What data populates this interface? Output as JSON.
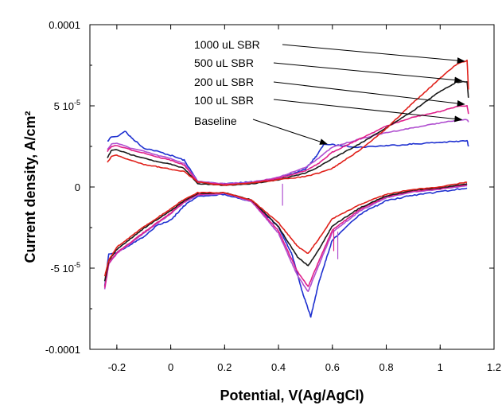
{
  "chart_data": {
    "type": "line",
    "title": "",
    "xlabel": "Potential, V(Ag/AgCl)",
    "ylabel": "Current density, A/cm²",
    "xlim": [
      -0.3,
      1.2
    ],
    "ylim": [
      -0.0001,
      0.0001
    ],
    "x_ticks": [
      -0.2,
      0,
      0.2,
      0.4,
      0.6,
      0.8,
      1,
      1.2
    ],
    "x_tick_labels": [
      "-0.2",
      "0",
      "0.2",
      "0.4",
      "0.6",
      "0.8",
      "1",
      "1.2"
    ],
    "y_ticks": [
      {
        "value": -0.0001,
        "label": "-0.0001"
      },
      {
        "value": -5e-05,
        "mant": "-5 10",
        "exp": "-5"
      },
      {
        "value": 0,
        "label": "0"
      },
      {
        "value": 5e-05,
        "mant": "5 10",
        "exp": "-5"
      },
      {
        "value": 0.0001,
        "label": "0.0001"
      }
    ],
    "grid": false,
    "legend_placement": "top-right (annotated with arrows)",
    "series": [
      {
        "name": "1000 uL SBR",
        "color": "#e0201a",
        "arrow_target": [
          1.09,
          7.75e-05
        ],
        "anodic": [
          [
            -0.235,
            1.5e-05
          ],
          [
            -0.22,
            1.9e-05
          ],
          [
            -0.2,
            1.95e-05
          ],
          [
            -0.15,
            1.65e-05
          ],
          [
            -0.1,
            1.4e-05
          ],
          [
            -0.05,
            1.25e-05
          ],
          [
            0,
            1.1e-05
          ],
          [
            0.05,
            9.5e-06
          ],
          [
            0.1,
            3e-06
          ],
          [
            0.2,
            1e-06
          ],
          [
            0.3,
            2.5e-06
          ],
          [
            0.4,
            4.5e-06
          ],
          [
            0.5,
            6.5e-06
          ],
          [
            0.55,
            8.5e-06
          ],
          [
            0.6,
            1.15e-05
          ],
          [
            0.7,
            2.25e-05
          ],
          [
            0.8,
            3.6e-05
          ],
          [
            0.9,
            5.2e-05
          ],
          [
            1,
            6.7e-05
          ],
          [
            1.06,
            7.55e-05
          ],
          [
            1.1,
            7.8e-05
          ],
          [
            1.105,
            6e-05
          ]
        ],
        "cathodic": [
          [
            1.1,
            3e-06
          ],
          [
            1.0,
            0
          ],
          [
            0.9,
            -1.5e-06
          ],
          [
            0.8,
            -4.5e-06
          ],
          [
            0.7,
            -1.1e-05
          ],
          [
            0.6,
            -1.95e-05
          ],
          [
            0.55,
            -3.2e-05
          ],
          [
            0.51,
            -4.1e-05
          ],
          [
            0.47,
            -3.65e-05
          ],
          [
            0.4,
            -2.2e-05
          ],
          [
            0.3,
            -8e-06
          ],
          [
            0.2,
            -3.5e-06
          ],
          [
            0.1,
            -3.5e-06
          ],
          [
            0.05,
            -7.5e-06
          ],
          [
            0,
            -1.35e-05
          ],
          [
            -0.1,
            -2.45e-05
          ],
          [
            -0.2,
            -3.7e-05
          ],
          [
            -0.23,
            -4.5e-05
          ],
          [
            -0.245,
            -5.5e-05
          ]
        ]
      },
      {
        "name": "500 uL SBR",
        "color": "#1a1a1a",
        "arrow_target": [
          1.08,
          6.55e-05
        ],
        "anodic": [
          [
            -0.235,
            1.8e-05
          ],
          [
            -0.22,
            2.25e-05
          ],
          [
            -0.2,
            2.3e-05
          ],
          [
            -0.15,
            2e-05
          ],
          [
            -0.1,
            1.8e-05
          ],
          [
            -0.05,
            1.55e-05
          ],
          [
            0,
            1.4e-05
          ],
          [
            0.05,
            1.15e-05
          ],
          [
            0.1,
            2e-06
          ],
          [
            0.2,
            1e-06
          ],
          [
            0.3,
            2e-06
          ],
          [
            0.4,
            4.5e-06
          ],
          [
            0.5,
            8.5e-06
          ],
          [
            0.55,
            1.25e-05
          ],
          [
            0.6,
            1.75e-05
          ],
          [
            0.7,
            2.65e-05
          ],
          [
            0.8,
            3.65e-05
          ],
          [
            0.9,
            4.7e-05
          ],
          [
            1,
            5.9e-05
          ],
          [
            1.06,
            6.45e-05
          ],
          [
            1.1,
            6.5e-05
          ],
          [
            1.105,
            5.5e-05
          ]
        ],
        "cathodic": [
          [
            1.1,
            2e-06
          ],
          [
            1.0,
            -5e-07
          ],
          [
            0.9,
            -2e-06
          ],
          [
            0.8,
            -5.5e-06
          ],
          [
            0.7,
            -1.3e-05
          ],
          [
            0.6,
            -2.4e-05
          ],
          [
            0.55,
            -3.85e-05
          ],
          [
            0.51,
            -4.85e-05
          ],
          [
            0.47,
            -4.3e-05
          ],
          [
            0.4,
            -2.45e-05
          ],
          [
            0.3,
            -8e-06
          ],
          [
            0.2,
            -3.5e-06
          ],
          [
            0.1,
            -4e-06
          ],
          [
            0.05,
            -8.5e-06
          ],
          [
            0,
            -1.45e-05
          ],
          [
            -0.1,
            -2.55e-05
          ],
          [
            -0.2,
            -3.85e-05
          ],
          [
            -0.23,
            -4.55e-05
          ],
          [
            -0.245,
            -5.8e-05
          ]
        ]
      },
      {
        "name": "200 uL SBR",
        "color": "#e0208a",
        "arrow_target": [
          1.09,
          5.1e-05
        ],
        "anodic": [
          [
            -0.235,
            2.2e-05
          ],
          [
            -0.22,
            2.5e-05
          ],
          [
            -0.2,
            2.55e-05
          ],
          [
            -0.15,
            2.3e-05
          ],
          [
            -0.1,
            2.1e-05
          ],
          [
            -0.05,
            1.85e-05
          ],
          [
            0,
            1.65e-05
          ],
          [
            0.05,
            1.35e-05
          ],
          [
            0.1,
            3e-06
          ],
          [
            0.2,
            1.5e-06
          ],
          [
            0.3,
            2.5e-06
          ],
          [
            0.4,
            5.5e-06
          ],
          [
            0.5,
            1e-05
          ],
          [
            0.55,
            1.45e-05
          ],
          [
            0.6,
            2.15e-05
          ],
          [
            0.7,
            2.95e-05
          ],
          [
            0.8,
            3.75e-05
          ],
          [
            0.9,
            4.3e-05
          ],
          [
            1,
            4.65e-05
          ],
          [
            1.06,
            4.95e-05
          ],
          [
            1.1,
            5e-05
          ],
          [
            1.105,
            4.5e-05
          ]
        ],
        "cathodic": [
          [
            1.1,
            1.5e-06
          ],
          [
            1.0,
            -1e-06
          ],
          [
            0.9,
            -2.5e-06
          ],
          [
            0.8,
            -6e-06
          ],
          [
            0.7,
            -1.4e-05
          ],
          [
            0.6,
            -2.65e-05
          ],
          [
            0.55,
            -4.55e-05
          ],
          [
            0.51,
            -6.15e-05
          ],
          [
            0.47,
            -5.2e-05
          ],
          [
            0.4,
            -2.7e-05
          ],
          [
            0.3,
            -8.5e-06
          ],
          [
            0.2,
            -3.5e-06
          ],
          [
            0.1,
            -4.5e-06
          ],
          [
            0.05,
            -9e-06
          ],
          [
            0,
            -1.6e-05
          ],
          [
            -0.1,
            -2.8e-05
          ],
          [
            -0.2,
            -4.05e-05
          ],
          [
            -0.23,
            -4.7e-05
          ],
          [
            -0.245,
            -6.2e-05
          ]
        ]
      },
      {
        "name": "100 uL SBR",
        "color": "#b050d0",
        "arrow_target": [
          1.08,
          4.15e-05
        ],
        "anodic": [
          [
            -0.235,
            2.3e-05
          ],
          [
            -0.22,
            2.65e-05
          ],
          [
            -0.2,
            2.7e-05
          ],
          [
            -0.15,
            2.4e-05
          ],
          [
            -0.1,
            2.2e-05
          ],
          [
            -0.05,
            1.95e-05
          ],
          [
            0,
            1.75e-05
          ],
          [
            0.05,
            1.45e-05
          ],
          [
            0.1,
            3.5e-06
          ],
          [
            0.2,
            2e-06
          ],
          [
            0.3,
            3e-06
          ],
          [
            0.4,
            6e-06
          ],
          [
            0.5,
            1.2e-05
          ],
          [
            0.55,
            1.8e-05
          ],
          [
            0.6,
            2.45e-05
          ],
          [
            0.7,
            2.95e-05
          ],
          [
            0.8,
            3.35e-05
          ],
          [
            0.9,
            3.65e-05
          ],
          [
            1,
            3.95e-05
          ],
          [
            1.06,
            4.1e-05
          ],
          [
            1.1,
            4.15e-05
          ],
          [
            1.105,
            4e-05
          ]
        ],
        "cathodic": [
          [
            1.1,
            1e-06
          ],
          [
            1.0,
            -1.5e-06
          ],
          [
            0.9,
            -3e-06
          ],
          [
            0.8,
            -6.5e-06
          ],
          [
            0.7,
            -1.5e-05
          ],
          [
            0.6,
            -2.8e-05
          ],
          [
            0.55,
            -4.8e-05
          ],
          [
            0.51,
            -6.45e-05
          ],
          [
            0.47,
            -5.45e-05
          ],
          [
            0.4,
            -2.85e-05
          ],
          [
            0.3,
            -9e-06
          ],
          [
            0.2,
            -4e-06
          ],
          [
            0.1,
            -5e-06
          ],
          [
            0.05,
            -9.5e-06
          ],
          [
            0,
            -1.65e-05
          ],
          [
            -0.1,
            -2.85e-05
          ],
          [
            -0.2,
            -4.1e-05
          ],
          [
            -0.23,
            -4.75e-05
          ],
          [
            -0.245,
            -6.3e-05
          ]
        ]
      },
      {
        "name": "Baseline",
        "color": "#1e30d0",
        "arrow_target": [
          0.58,
          2.65e-05
        ],
        "anodic": [
          [
            -0.235,
            2.8e-05
          ],
          [
            -0.22,
            3.1e-05
          ],
          [
            -0.2,
            3.1e-05
          ],
          [
            -0.17,
            3.45e-05
          ],
          [
            -0.15,
            3.1e-05
          ],
          [
            -0.1,
            2.4e-05
          ],
          [
            -0.05,
            2.2e-05
          ],
          [
            0,
            1.95e-05
          ],
          [
            0.05,
            1.65e-05
          ],
          [
            0.1,
            3.5e-06
          ],
          [
            0.2,
            2e-06
          ],
          [
            0.3,
            3e-06
          ],
          [
            0.4,
            5e-06
          ],
          [
            0.5,
            1.1e-05
          ],
          [
            0.54,
            1.9e-05
          ],
          [
            0.57,
            2.65e-05
          ],
          [
            0.6,
            2.6e-05
          ],
          [
            0.7,
            2.45e-05
          ],
          [
            0.8,
            2.55e-05
          ],
          [
            0.9,
            2.65e-05
          ],
          [
            1,
            2.75e-05
          ],
          [
            1.06,
            2.8e-05
          ],
          [
            1.1,
            2.85e-05
          ],
          [
            1.105,
            2.5e-05
          ]
        ],
        "cathodic": [
          [
            1.1,
            -5e-07
          ],
          [
            1.0,
            -3e-06
          ],
          [
            0.9,
            -5e-06
          ],
          [
            0.8,
            -8.5e-06
          ],
          [
            0.7,
            -1.7e-05
          ],
          [
            0.6,
            -3.25e-05
          ],
          [
            0.55,
            -5.85e-05
          ],
          [
            0.52,
            -8e-05
          ],
          [
            0.49,
            -6.55e-05
          ],
          [
            0.45,
            -4.15e-05
          ],
          [
            0.4,
            -2.45e-05
          ],
          [
            0.3,
            -9e-06
          ],
          [
            0.2,
            -4.5e-06
          ],
          [
            0.1,
            -6e-06
          ],
          [
            0.05,
            -1.15e-05
          ],
          [
            0,
            -2.05e-05
          ],
          [
            -0.05,
            -2.35e-05
          ],
          [
            -0.1,
            -3.05e-05
          ],
          [
            -0.2,
            -4.05e-05
          ],
          [
            -0.23,
            -4.1e-05
          ],
          [
            -0.245,
            -6.1e-05
          ]
        ]
      }
    ],
    "annotations": [
      {
        "type": "spike",
        "color": "#b050d0",
        "x": 0.415,
        "y_from": -1.15e-05,
        "y_to": 2e-06
      },
      {
        "type": "spike",
        "color": "#b050d0",
        "x": 0.62,
        "y_from": -2.75e-05,
        "y_to": -4.45e-05
      },
      {
        "type": "spike",
        "color": "#e0208a",
        "x": 0.605,
        "y_from": -2.65e-05,
        "y_to": -3.95e-05
      }
    ]
  }
}
